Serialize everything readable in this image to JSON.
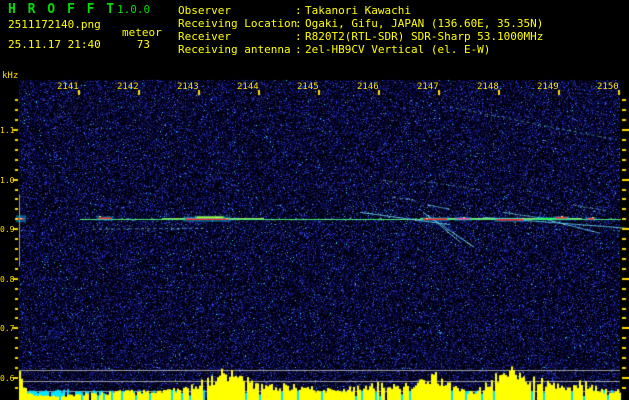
{
  "header": {
    "app_title": "H R O F F T",
    "app_version": "1.0.0",
    "filename": "2511172140.png",
    "mode": "meteor",
    "datetime": "25.11.17 21:40",
    "echo_count": "73",
    "colon_separator": ":",
    "info_rows": [
      {
        "label": "Observer",
        "value": "Takanori Kawachi"
      },
      {
        "label": "Receiving Location",
        "value": "Ogaki, Gifu, JAPAN (136.60E, 35.35N)"
      },
      {
        "label": "Receiver",
        "value": "R820T2(RTL-SDR) SDR-Sharp 53.1000MHz"
      },
      {
        "label": "Receiving antenna",
        "value": "2el-HB9CV Vertical (el. E-W)"
      }
    ]
  },
  "colors": {
    "background": "#000000",
    "title_green": "#00dd00",
    "text_yellow": "#ffff00",
    "axis_yellow": "#ffd800",
    "carrier_green": "rgba(80,255,120,0.9)",
    "trail_cyan": "100,220,255",
    "histogram_yellow": "#ffff00",
    "histogram_cyan": "#00e5ff",
    "grid_gray": "rgba(170,170,170,0.9)"
  },
  "chart_data": {
    "type": "heatmap",
    "description": "HROFFT radio meteor echo spectrogram, 10-minute waterfall with signal-level histogram",
    "x_axis": {
      "tick_labels": [
        "2141",
        "2142",
        "2143",
        "2144",
        "2145",
        "2146",
        "2147",
        "2148",
        "2149",
        "2150"
      ],
      "minutes_per_division": 1
    },
    "y_axis": {
      "unit_label": "kHz",
      "tick_labels": [
        "1.1",
        "1.0",
        "0.9",
        "0.8",
        "0.7",
        "0.6"
      ],
      "khz_per_division": 0.1
    },
    "carrier": {
      "khz": 0.921,
      "start_min": 2141.03,
      "end_min": 2150.05
    },
    "carrier_marker": {
      "khz_low": 0.826,
      "khz_high": 0.97
    },
    "bright_carrier_segments": [
      {
        "t1": 2142.4,
        "t2": 2144.1
      },
      {
        "t1": 2146.7,
        "t2": 2149.4
      }
    ],
    "trails": [
      {
        "t1": 2141.25,
        "f1": 0.9,
        "t2": 2143.1,
        "f2": 0.902,
        "a": 0.55
      },
      {
        "t1": 2145.7,
        "f1": 0.934,
        "t2": 2147.2,
        "f2": 0.909,
        "a": 0.8
      },
      {
        "t1": 2146.75,
        "f1": 0.934,
        "t2": 2147.6,
        "f2": 0.864,
        "a": 0.85
      },
      {
        "t1": 2146.92,
        "f1": 0.919,
        "t2": 2147.37,
        "f2": 0.874,
        "a": 0.7
      },
      {
        "t1": 2147.2,
        "f1": 1.146,
        "t2": 2149.9,
        "f2": 1.082,
        "a": 0.5
      },
      {
        "t1": 2146.25,
        "f1": 0.964,
        "t2": 2146.65,
        "f2": 0.958,
        "a": 0.55
      },
      {
        "t1": 2146.83,
        "f1": 0.949,
        "t2": 2147.2,
        "f2": 0.94,
        "a": 0.6
      },
      {
        "t1": 2147.75,
        "f1": 0.924,
        "t2": 2150.15,
        "f2": 0.902,
        "a": 0.75
      },
      {
        "t1": 2148.08,
        "f1": 0.934,
        "t2": 2148.82,
        "f2": 0.921,
        "a": 0.6
      },
      {
        "t1": 2148.82,
        "f1": 0.919,
        "t2": 2149.7,
        "f2": 0.892,
        "a": 0.7
      },
      {
        "t1": 2146.75,
        "f1": 0.997,
        "t2": 2147.7,
        "f2": 0.979,
        "a": 0.4
      },
      {
        "t1": 2146.08,
        "f1": 0.999,
        "t2": 2146.48,
        "f2": 0.989,
        "a": 0.4
      },
      {
        "t1": 2149.25,
        "f1": 0.949,
        "t2": 2149.82,
        "f2": 0.937,
        "a": 0.5
      }
    ],
    "hotspots": [
      {
        "t": 2140.05,
        "f": 0.921,
        "w": 0.1,
        "color": "#ff4444",
        "halo": 5
      },
      {
        "t": 2141.45,
        "f": 0.922,
        "w": 0.22,
        "color": "#ff3333",
        "halo": 2
      },
      {
        "t": 2143.15,
        "f": 0.92,
        "w": 0.72,
        "color": "#ff2525",
        "halo": 3
      },
      {
        "t": 2143.2,
        "f": 0.924,
        "w": 0.45,
        "color": "#b0ff20",
        "halo": 1
      },
      {
        "t": 2146.95,
        "f": 0.92,
        "w": 0.4,
        "color": "#ff2525",
        "halo": 2
      },
      {
        "t": 2147.42,
        "f": 0.921,
        "w": 0.22,
        "color": "#ff44aa",
        "halo": 2
      },
      {
        "t": 2148.2,
        "f": 0.919,
        "w": 0.45,
        "color": "#ff2525",
        "halo": 2
      },
      {
        "t": 2148.9,
        "f": 0.921,
        "w": 0.5,
        "color": "#33ff44",
        "halo": 1
      },
      {
        "t": 2149.05,
        "f": 0.923,
        "w": 0.2,
        "color": "#ff3333",
        "halo": 1
      },
      {
        "t": 2149.55,
        "f": 0.921,
        "w": 0.12,
        "color": "#ff4444",
        "halo": 1
      }
    ],
    "grid_lines_khz": [
      0.6162,
      0.594,
      0.5738
    ],
    "histogram_envelope": [
      [
        2140.02,
        30
      ],
      [
        2140.07,
        16
      ],
      [
        2140.15,
        6
      ],
      [
        2140.37,
        4
      ],
      [
        2141.03,
        5
      ],
      [
        2141.7,
        8
      ],
      [
        2142.37,
        8
      ],
      [
        2142.78,
        11
      ],
      [
        2143.03,
        16
      ],
      [
        2143.45,
        26
      ],
      [
        2143.78,
        20
      ],
      [
        2144.0,
        13
      ],
      [
        2144.45,
        13
      ],
      [
        2144.78,
        12
      ],
      [
        2145.2,
        9
      ],
      [
        2145.62,
        11
      ],
      [
        2145.9,
        16
      ],
      [
        2146.17,
        13
      ],
      [
        2146.45,
        15
      ],
      [
        2146.7,
        17
      ],
      [
        2146.92,
        24
      ],
      [
        2147.12,
        16
      ],
      [
        2147.33,
        11
      ],
      [
        2147.53,
        7
      ],
      [
        2147.75,
        12
      ],
      [
        2148.03,
        24
      ],
      [
        2148.23,
        28
      ],
      [
        2148.42,
        21
      ],
      [
        2148.67,
        19
      ],
      [
        2148.92,
        15
      ],
      [
        2149.12,
        11
      ],
      [
        2149.33,
        17
      ],
      [
        2149.53,
        14
      ],
      [
        2149.73,
        9
      ],
      [
        2149.9,
        9
      ],
      [
        2150.03,
        8
      ]
    ]
  }
}
